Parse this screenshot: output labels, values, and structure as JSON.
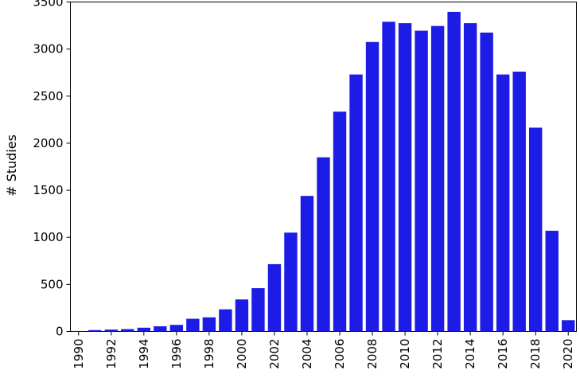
{
  "chart_data": {
    "type": "bar",
    "title": "",
    "xlabel": "",
    "ylabel": "# Studies",
    "ylim": [
      0,
      3500
    ],
    "yticks": [
      0,
      500,
      1000,
      1500,
      2000,
      2500,
      3000,
      3500
    ],
    "x_tick_labels": [
      "1990",
      "1992",
      "1994",
      "1996",
      "1998",
      "2000",
      "2002",
      "2004",
      "2006",
      "2008",
      "2010",
      "2012",
      "2014",
      "2016",
      "2018",
      "2020"
    ],
    "categories": [
      1990,
      1991,
      1992,
      1993,
      1994,
      1995,
      1996,
      1997,
      1998,
      1999,
      2000,
      2001,
      2002,
      2003,
      2004,
      2005,
      2006,
      2007,
      2008,
      2009,
      2010,
      2011,
      2012,
      2013,
      2014,
      2015,
      2016,
      2017,
      2018,
      2019,
      2020
    ],
    "values": [
      5,
      15,
      20,
      25,
      40,
      55,
      70,
      135,
      150,
      235,
      340,
      460,
      715,
      1050,
      1440,
      1850,
      2335,
      2730,
      3075,
      3290,
      3275,
      3195,
      3245,
      3395,
      3275,
      3175,
      2730,
      2760,
      2165,
      1070,
      120
    ],
    "bar_color": "#1c1ce6",
    "grid": false
  }
}
